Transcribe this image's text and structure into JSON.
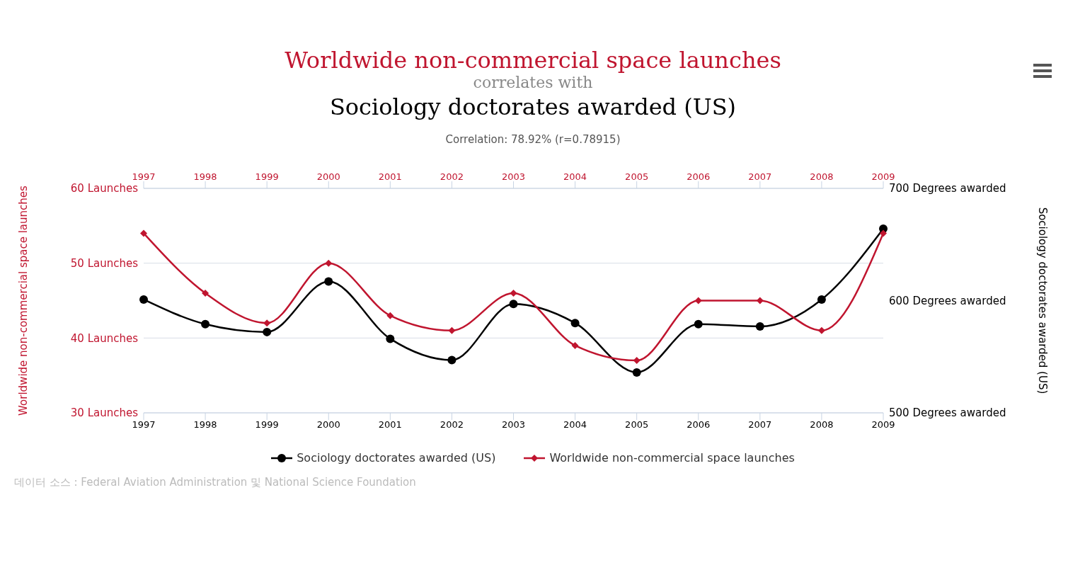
{
  "chart_data": {
    "type": "line",
    "title": "Worldwide non-commercial space launches",
    "subtitle": "Sociology doctorates awarded (US)",
    "annotations": [
      "correlates with",
      "Correlation: 78.92% (r=0.78915)",
      "데이터 소스 : Federal Aviation Administration 및 National Science Foundation"
    ],
    "categories": [
      "1997",
      "1998",
      "1999",
      "2000",
      "2001",
      "2002",
      "2003",
      "2004",
      "2005",
      "2006",
      "2007",
      "2008",
      "2009"
    ],
    "series": [
      {
        "name": "Sociology doctorates awarded (US)",
        "color": "#000000",
        "axis": "y2",
        "marker": "circle",
        "values": [
          601,
          579,
          572,
          617,
          566,
          547,
          597,
          580,
          536,
          579,
          577,
          601,
          664
        ]
      },
      {
        "name": "Worldwide non-commercial space launches",
        "color": "#c0152f",
        "axis": "y",
        "marker": "diamond",
        "values": [
          54,
          46,
          42,
          50,
          43,
          41,
          46,
          39,
          37,
          45,
          45,
          41,
          54
        ]
      }
    ],
    "ylabel": "Worldwide non-commercial space launches",
    "y2label": "Sociology doctorates awarded (US)",
    "ylim": [
      30,
      60
    ],
    "yticks": [
      {
        "value": 30,
        "label": "30 Launches"
      },
      {
        "value": 40,
        "label": "40 Launches"
      },
      {
        "value": 50,
        "label": "50 Launches"
      },
      {
        "value": 60,
        "label": "60 Launches"
      }
    ],
    "y2lim": [
      500,
      700
    ],
    "y2ticks": [
      {
        "value": 500,
        "label": "500 Degrees awarded"
      },
      {
        "value": 600,
        "label": "600 Degrees awarded"
      },
      {
        "value": 700,
        "label": "700 Degrees awarded"
      }
    ],
    "grid": "y",
    "legend": "bottom",
    "line_style": "solid"
  }
}
